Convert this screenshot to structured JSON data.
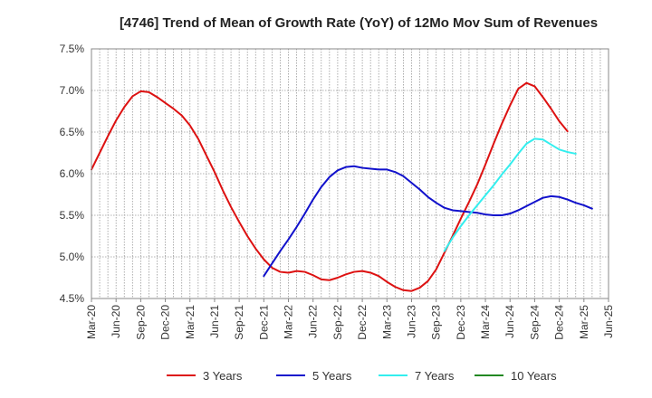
{
  "chart_data": {
    "type": "line",
    "title": "[4746]  Trend of Mean of Growth Rate (YoY) of 12Mo Mov Sum of Revenues",
    "xlabel": "",
    "ylabel": "",
    "ylim": [
      4.5,
      7.5
    ],
    "y_ticks": [
      "4.5%",
      "5.0%",
      "5.5%",
      "6.0%",
      "6.5%",
      "7.0%",
      "7.5%"
    ],
    "y_tick_values": [
      4.5,
      5.0,
      5.5,
      6.0,
      6.5,
      7.0,
      7.5
    ],
    "x_ticks": [
      "Mar-20",
      "Jun-20",
      "Sep-20",
      "Dec-20",
      "Mar-21",
      "Jun-21",
      "Sep-21",
      "Dec-21",
      "Mar-22",
      "Jun-22",
      "Sep-22",
      "Dec-22",
      "Mar-23",
      "Jun-23",
      "Sep-23",
      "Dec-23",
      "Mar-24",
      "Jun-24",
      "Sep-24",
      "Dec-24",
      "Mar-25",
      "Jun-25"
    ],
    "x_count": 64,
    "grid": true,
    "legend_position": "bottom",
    "series": [
      {
        "name": "3 Years",
        "color": "#dd1111",
        "start_index": 0,
        "values": [
          6.05,
          6.25,
          6.45,
          6.64,
          6.8,
          6.93,
          6.99,
          6.98,
          6.92,
          6.85,
          6.78,
          6.7,
          6.58,
          6.42,
          6.22,
          6.02,
          5.8,
          5.6,
          5.42,
          5.25,
          5.1,
          4.97,
          4.87,
          4.82,
          4.81,
          4.83,
          4.82,
          4.78,
          4.73,
          4.72,
          4.75,
          4.79,
          4.82,
          4.83,
          4.81,
          4.77,
          4.7,
          4.64,
          4.6,
          4.59,
          4.63,
          4.71,
          4.85,
          5.05,
          5.25,
          5.46,
          5.66,
          5.87,
          6.11,
          6.36,
          6.6,
          6.82,
          7.02,
          7.09,
          7.05,
          6.92,
          6.78,
          6.63,
          6.51
        ]
      },
      {
        "name": "5 Years",
        "color": "#1111cc",
        "start_index": 21,
        "values": [
          4.77,
          4.92,
          5.07,
          5.21,
          5.36,
          5.52,
          5.69,
          5.84,
          5.96,
          6.04,
          6.08,
          6.09,
          6.07,
          6.06,
          6.05,
          6.05,
          6.02,
          5.97,
          5.89,
          5.81,
          5.72,
          5.65,
          5.59,
          5.56,
          5.55,
          5.54,
          5.53,
          5.51,
          5.5,
          5.5,
          5.52,
          5.56,
          5.61,
          5.66,
          5.71,
          5.73,
          5.72,
          5.69,
          5.65,
          5.62,
          5.58
        ]
      },
      {
        "name": "7 Years",
        "color": "#33eeee",
        "start_index": 43,
        "values": [
          5.07,
          5.23,
          5.37,
          5.5,
          5.62,
          5.74,
          5.86,
          5.99,
          6.11,
          6.24,
          6.36,
          6.42,
          6.41,
          6.35,
          6.29,
          6.26,
          6.24
        ]
      },
      {
        "name": "10 Years",
        "color": "#228822",
        "start_index": 0,
        "values": []
      }
    ]
  }
}
